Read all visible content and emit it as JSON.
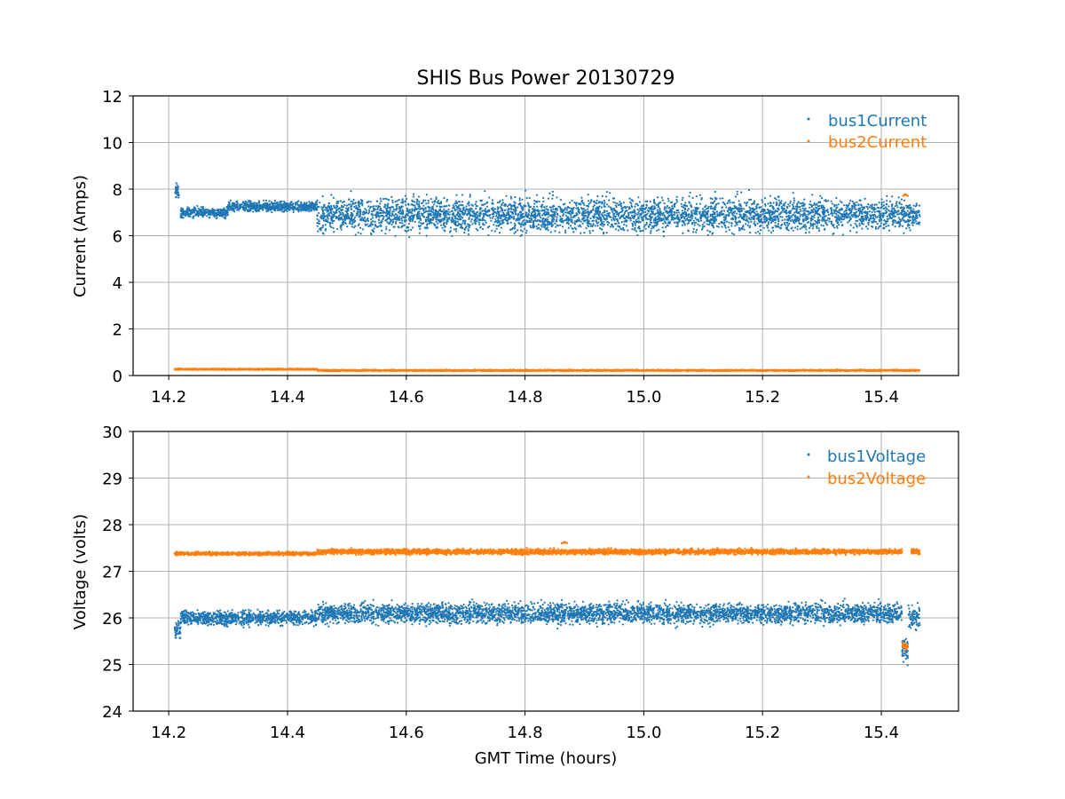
{
  "chart_data": [
    {
      "type": "scatter",
      "title": "SHIS Bus Power 20130729",
      "xlabel": "",
      "ylabel": "Current (Amps)",
      "xlim": [
        14.14,
        15.53
      ],
      "ylim": [
        0,
        12
      ],
      "xticks": [
        "14.2",
        "14.4",
        "14.6",
        "14.8",
        "15.0",
        "15.2",
        "15.4"
      ],
      "yticks": [
        "0",
        "2",
        "4",
        "6",
        "8",
        "10",
        "12"
      ],
      "grid": true,
      "legend_position": "top-right",
      "series": [
        {
          "name": "bus1Current",
          "color": "#1f77b4",
          "segments": [
            {
              "x": [
                14.21,
                14.218
              ],
              "center": 7.9,
              "spread": 0.45
            },
            {
              "x": [
                14.22,
                14.3
              ],
              "center": 7.0,
              "spread": 0.3
            },
            {
              "x": [
                14.3,
                14.45
              ],
              "center": 7.25,
              "spread": 0.3
            },
            {
              "x": [
                14.45,
                15.43
              ],
              "center": 6.9,
              "spread": 1.0
            },
            {
              "x": [
                15.43,
                15.465
              ],
              "center": 6.9,
              "spread": 0.9
            }
          ]
        },
        {
          "name": "bus2Current",
          "color": "#ff7f0e",
          "segments": [
            {
              "x": [
                14.21,
                14.45
              ],
              "center": 0.27,
              "spread": 0.04
            },
            {
              "x": [
                14.45,
                15.465
              ],
              "center": 0.22,
              "spread": 0.04
            }
          ],
          "points": [
            {
              "x": 15.44,
              "y": 7.75
            }
          ]
        }
      ]
    },
    {
      "type": "scatter",
      "title": "",
      "xlabel": "GMT Time (hours)",
      "ylabel": "Voltage (volts)",
      "xlim": [
        14.14,
        15.53
      ],
      "ylim": [
        24,
        30
      ],
      "xticks": [
        "14.2",
        "14.4",
        "14.6",
        "14.8",
        "15.0",
        "15.2",
        "15.4"
      ],
      "yticks": [
        "24",
        "25",
        "26",
        "27",
        "28",
        "29",
        "30"
      ],
      "grid": true,
      "legend_position": "top-right",
      "series": [
        {
          "name": "bus1Voltage",
          "color": "#1f77b4",
          "segments": [
            {
              "x": [
                14.21,
                14.22
              ],
              "center": 25.75,
              "spread": 0.3
            },
            {
              "x": [
                14.22,
                14.45
              ],
              "center": 26.0,
              "spread": 0.22
            },
            {
              "x": [
                14.45,
                15.435
              ],
              "center": 26.1,
              "spread": 0.3
            },
            {
              "x": [
                15.435,
                15.445
              ],
              "center": 25.3,
              "spread": 0.3
            },
            {
              "x": [
                15.445,
                15.465
              ],
              "center": 26.0,
              "spread": 0.35
            }
          ]
        },
        {
          "name": "bus2Voltage",
          "color": "#ff7f0e",
          "segments": [
            {
              "x": [
                14.21,
                14.45
              ],
              "center": 27.38,
              "spread": 0.05
            },
            {
              "x": [
                14.45,
                15.435
              ],
              "center": 27.42,
              "spread": 0.08
            },
            {
              "x": [
                15.435,
                15.445
              ],
              "center": 25.4,
              "spread": 0.1
            },
            {
              "x": [
                15.45,
                15.465
              ],
              "center": 27.42,
              "spread": 0.08
            }
          ],
          "points": [
            {
              "x": 14.865,
              "y": 27.62
            }
          ]
        }
      ]
    }
  ]
}
